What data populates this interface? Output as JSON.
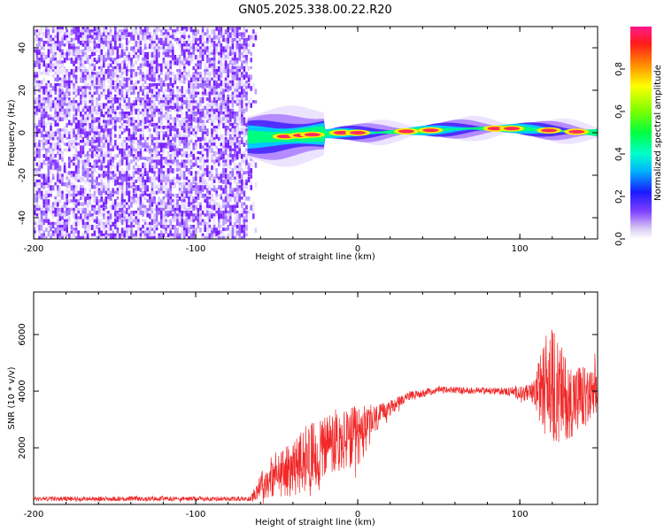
{
  "title": "GN05.2025.338.00.22.R20",
  "colors": {
    "snr_line": "#f02828",
    "axis": "#000000",
    "background": "#ffffff"
  },
  "chart_data": [
    {
      "type": "heatmap",
      "name": "spectrogram",
      "xlabel": "Height of straight line (km)",
      "ylabel": "Frequency (Hz)",
      "xlim": [
        -200,
        148
      ],
      "ylim": [
        -50,
        50
      ],
      "xticks": [
        -200,
        -100,
        0,
        100
      ],
      "yticks": [
        -40,
        -20,
        0,
        20,
        40
      ],
      "noise_region_x": [
        -200,
        -68
      ],
      "signal_band": [
        {
          "x": -68,
          "f": -2
        },
        {
          "x": -50,
          "f": -2
        },
        {
          "x": -30,
          "f": -1
        },
        {
          "x": -10,
          "f": 0
        },
        {
          "x": 10,
          "f": 0
        },
        {
          "x": 40,
          "f": 1
        },
        {
          "x": 70,
          "f": 2
        },
        {
          "x": 100,
          "f": 2
        },
        {
          "x": 120,
          "f": 1
        },
        {
          "x": 148,
          "f": 0
        }
      ],
      "hot_spots_x": [
        -45,
        -35,
        -28,
        -10,
        0,
        30,
        45,
        85,
        95,
        118,
        135
      ]
    },
    {
      "type": "colorbar",
      "name": "colorbar",
      "label": "Normalized spectral amplitude",
      "range": [
        0,
        1
      ],
      "ticks": [
        "0.0",
        "0.2",
        "0.4",
        "0.6",
        "0.8"
      ]
    },
    {
      "type": "line",
      "name": "snr",
      "xlabel": "Height of straight line (km)",
      "ylabel": "SNR (10 * v/v)",
      "xlim": [
        -200,
        148
      ],
      "ylim": [
        0,
        7500
      ],
      "xticks": [
        -200,
        -100,
        0,
        100
      ],
      "yticks": [
        2000,
        4000,
        6000
      ],
      "envelope": [
        {
          "x": -200,
          "mean": 200,
          "amp": 80
        },
        {
          "x": -66,
          "mean": 200,
          "amp": 80
        },
        {
          "x": -60,
          "mean": 700,
          "amp": 500
        },
        {
          "x": -40,
          "mean": 1300,
          "amp": 1000
        },
        {
          "x": -20,
          "mean": 2000,
          "amp": 1300
        },
        {
          "x": 0,
          "mean": 2400,
          "amp": 1100
        },
        {
          "x": 15,
          "mean": 3200,
          "amp": 350
        },
        {
          "x": 30,
          "mean": 3800,
          "amp": 150
        },
        {
          "x": 50,
          "mean": 4050,
          "amp": 120
        },
        {
          "x": 90,
          "mean": 4000,
          "amp": 120
        },
        {
          "x": 108,
          "mean": 3900,
          "amp": 350
        },
        {
          "x": 118,
          "mean": 4300,
          "amp": 2200
        },
        {
          "x": 130,
          "mean": 3700,
          "amp": 1400
        },
        {
          "x": 148,
          "mean": 3800,
          "amp": 900
        }
      ]
    }
  ]
}
